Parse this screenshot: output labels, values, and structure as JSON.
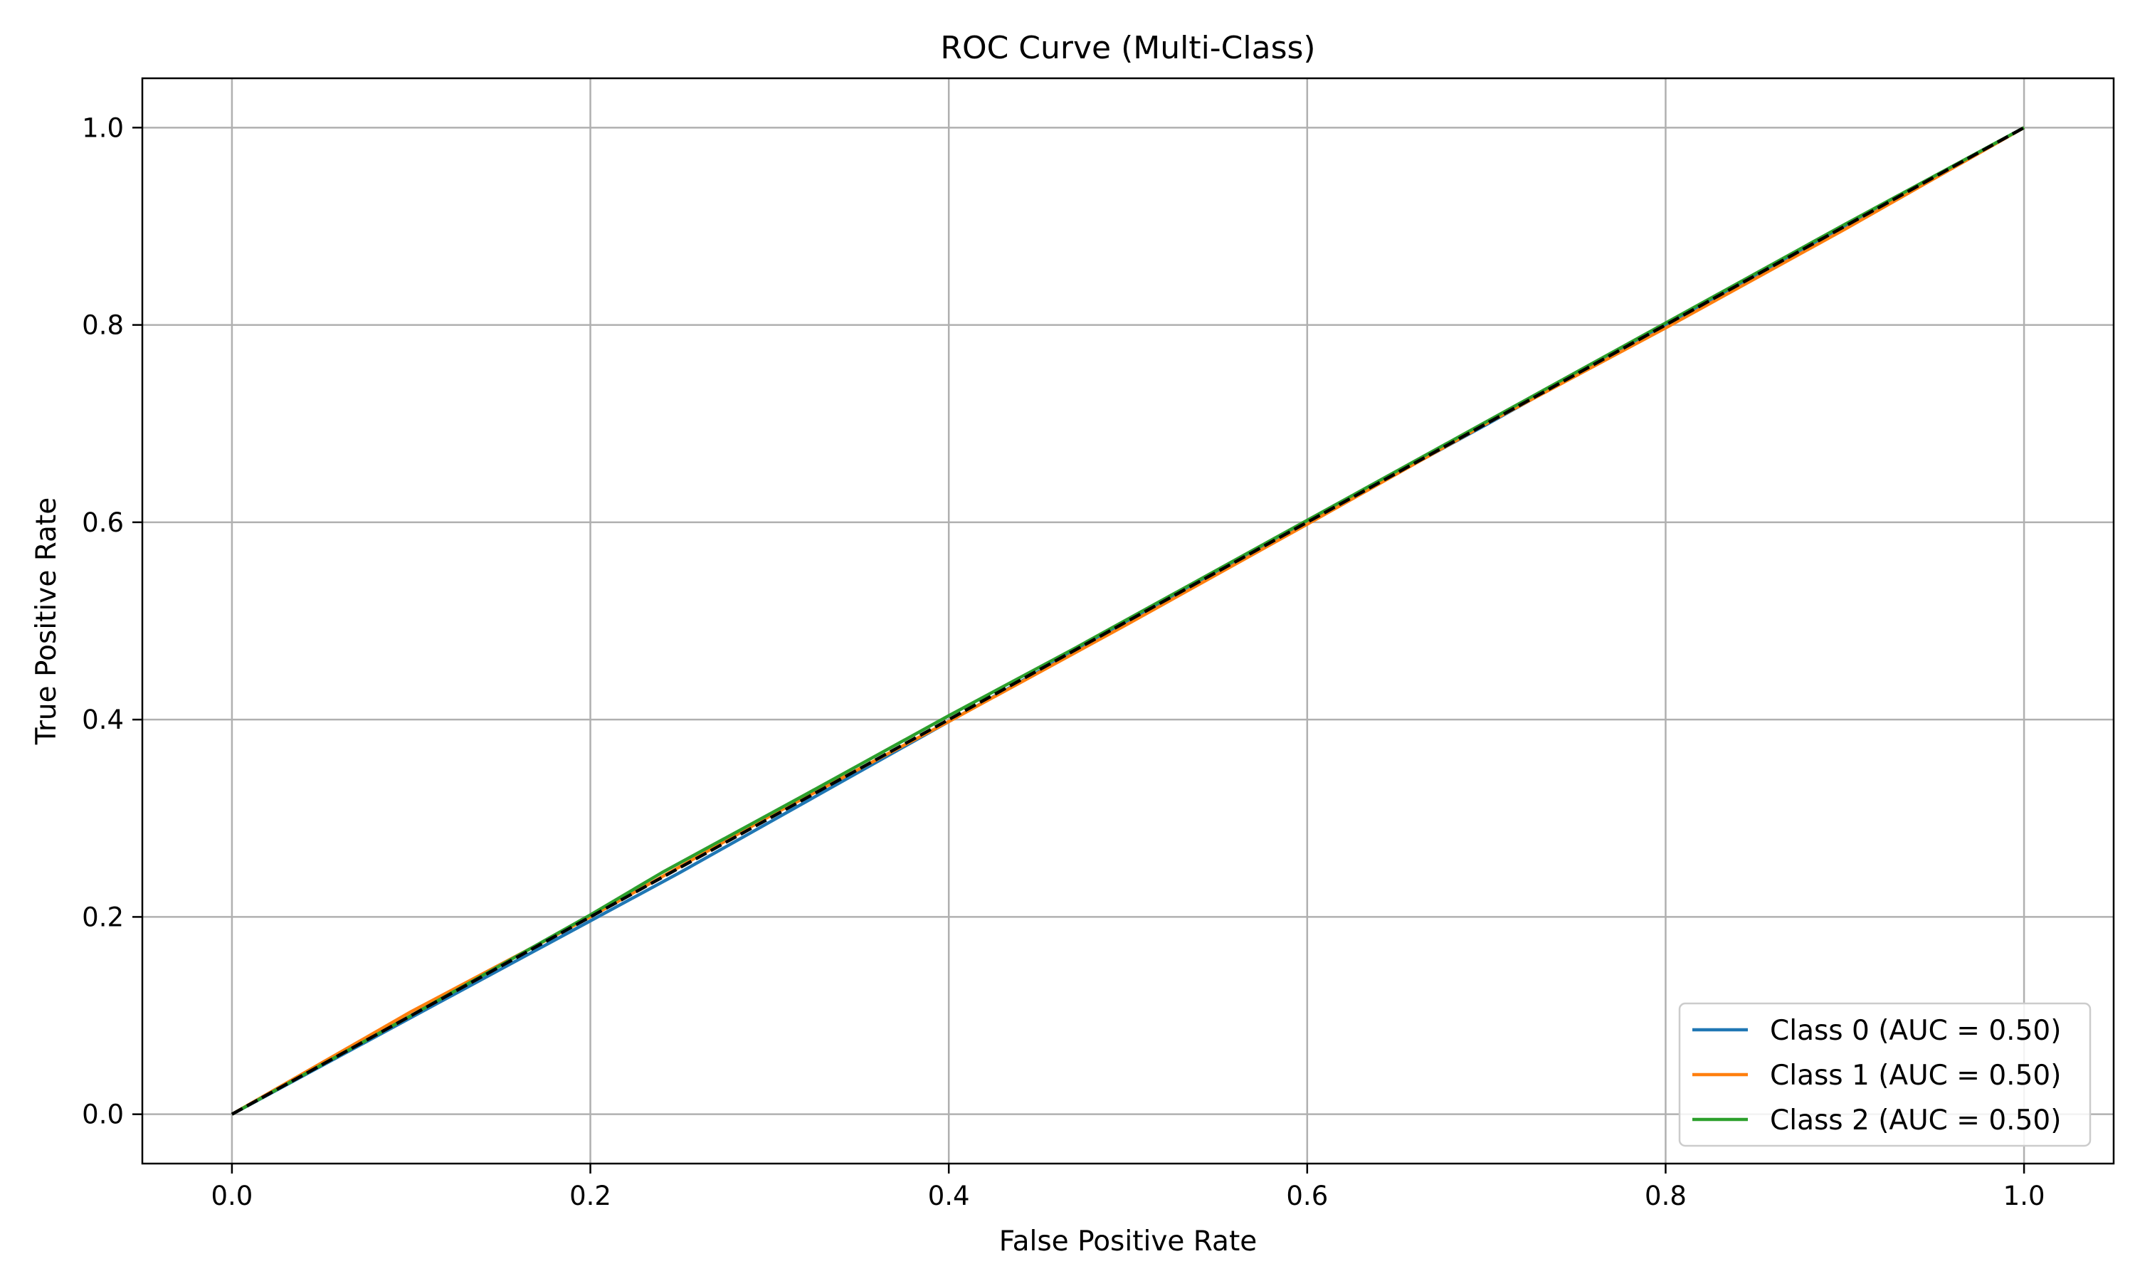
{
  "chart_data": {
    "type": "line",
    "title": "ROC Curve (Multi-Class)",
    "xlabel": "False Positive Rate",
    "ylabel": "True Positive Rate",
    "xlim": [
      -0.05,
      1.05
    ],
    "ylim": [
      -0.05,
      1.05
    ],
    "xticks": [
      0.0,
      0.2,
      0.4,
      0.6,
      0.8,
      1.0
    ],
    "yticks": [
      0.0,
      0.2,
      0.4,
      0.6,
      0.8,
      1.0
    ],
    "xtick_labels": [
      "0.0",
      "0.2",
      "0.4",
      "0.6",
      "0.8",
      "1.0"
    ],
    "ytick_labels": [
      "0.0",
      "0.2",
      "0.4",
      "0.6",
      "0.8",
      "1.0"
    ],
    "grid": true,
    "legend_position": "bottom-right",
    "series": [
      {
        "name": "Class 0 (AUC = 0.50)",
        "color": "#1f77b4",
        "x": [
          0.0,
          0.1,
          0.2,
          0.25,
          0.3,
          0.4,
          0.5,
          0.6,
          0.7,
          0.8,
          0.9,
          1.0
        ],
        "y": [
          0.0,
          0.098,
          0.196,
          0.245,
          0.296,
          0.398,
          0.499,
          0.6,
          0.699,
          0.8,
          0.9,
          1.0
        ]
      },
      {
        "name": "Class 1 (AUC = 0.50)",
        "color": "#ff7f0e",
        "x": [
          0.0,
          0.1,
          0.2,
          0.3,
          0.4,
          0.5,
          0.6,
          0.7,
          0.8,
          0.9,
          1.0
        ],
        "y": [
          0.0,
          0.104,
          0.2,
          0.302,
          0.398,
          0.497,
          0.598,
          0.7,
          0.797,
          0.897,
          1.0
        ]
      },
      {
        "name": "Class 2 (AUC = 0.50)",
        "color": "#2ca02c",
        "x": [
          0.0,
          0.1,
          0.2,
          0.24,
          0.32,
          0.4,
          0.47,
          0.6,
          0.7,
          0.8,
          0.9,
          1.0
        ],
        "y": [
          0.0,
          0.1,
          0.202,
          0.245,
          0.324,
          0.404,
          0.472,
          0.602,
          0.702,
          0.802,
          0.902,
          1.0
        ]
      }
    ],
    "reference_line": {
      "x": [
        0.0,
        1.0
      ],
      "y": [
        0.0,
        1.0
      ],
      "color": "#000000",
      "style": "dashed"
    }
  }
}
